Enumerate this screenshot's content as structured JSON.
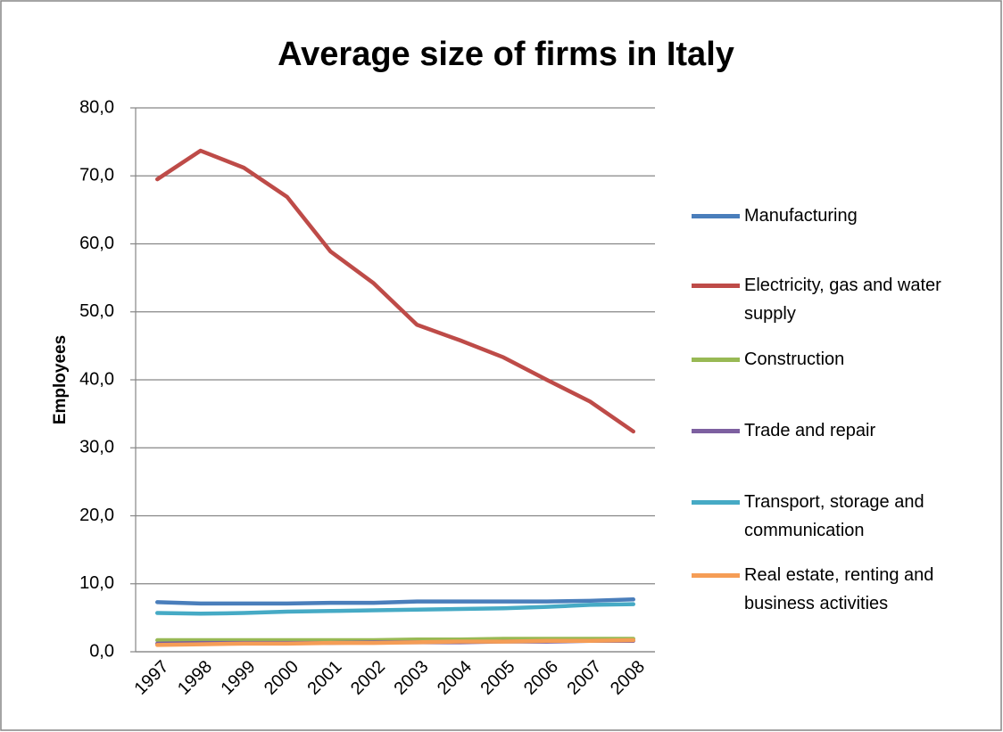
{
  "chart_data": {
    "type": "line",
    "title": "Average size of firms in Italy",
    "y_label": "Employees",
    "categories": [
      "1997",
      "1998",
      "1999",
      "2000",
      "2001",
      "2002",
      "2003",
      "2004",
      "2005",
      "2006",
      "2007",
      "2008"
    ],
    "ylim": [
      0,
      80
    ],
    "yticks": [
      {
        "value": 0,
        "label": "0,0"
      },
      {
        "value": 10,
        "label": "10,0"
      },
      {
        "value": 20,
        "label": "20,0"
      },
      {
        "value": 30,
        "label": "30,0"
      },
      {
        "value": 40,
        "label": "40,0"
      },
      {
        "value": 50,
        "label": "50,0"
      },
      {
        "value": 60,
        "label": "60,0"
      },
      {
        "value": 70,
        "label": "70,0"
      },
      {
        "value": 80,
        "label": "80,0"
      }
    ],
    "grid": true,
    "legend": "right",
    "series": [
      {
        "name": "Manufacturing",
        "color": "#4a7ebb",
        "values": [
          7.3,
          7.1,
          7.1,
          7.1,
          7.2,
          7.2,
          7.4,
          7.4,
          7.4,
          7.4,
          7.5,
          7.7
        ]
      },
      {
        "name": "Electricity, gas and water supply",
        "color": "#be4b48",
        "values": [
          69.5,
          73.7,
          71.2,
          66.9,
          58.9,
          54.2,
          48.1,
          45.8,
          43.3,
          40.0,
          36.8,
          32.4
        ]
      },
      {
        "name": "Construction",
        "color": "#98b954",
        "values": [
          1.7,
          1.7,
          1.7,
          1.7,
          1.7,
          1.7,
          1.8,
          1.8,
          1.9,
          1.9,
          1.9,
          1.9
        ]
      },
      {
        "name": "Trade and repair",
        "color": "#7d60a0",
        "values": [
          1.2,
          1.3,
          1.3,
          1.3,
          1.3,
          1.4,
          1.4,
          1.4,
          1.5,
          1.5,
          1.6,
          1.6
        ]
      },
      {
        "name": "Transport, storage and communication",
        "color": "#46aac5",
        "values": [
          5.7,
          5.6,
          5.7,
          5.9,
          6.0,
          6.1,
          6.2,
          6.3,
          6.4,
          6.6,
          6.9,
          7.0
        ]
      },
      {
        "name": "Real estate, renting and business activities",
        "color": "#f59d56",
        "values": [
          1.0,
          1.1,
          1.2,
          1.2,
          1.3,
          1.3,
          1.4,
          1.5,
          1.5,
          1.6,
          1.6,
          1.7
        ]
      }
    ]
  }
}
